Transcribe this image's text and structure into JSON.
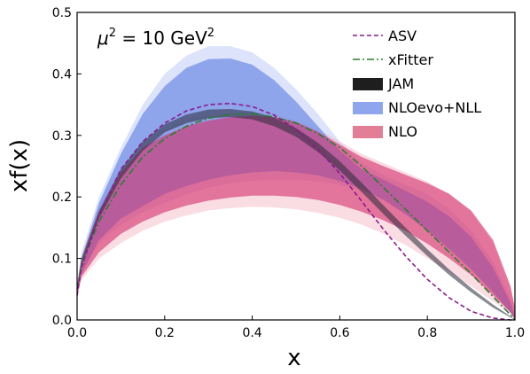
{
  "chart_data": {
    "type": "area",
    "xlabel": "x",
    "ylabel": "xf(x)",
    "annotation": {
      "mu_symbol": "μ",
      "mu_exponent": "2",
      "equals_value": " = 10 GeV",
      "unit_exponent": "2"
    },
    "xlim": [
      0.0,
      1.0
    ],
    "ylim": [
      0.0,
      0.5
    ],
    "x_ticks": [
      0.0,
      0.2,
      0.4,
      0.6,
      0.8,
      1.0
    ],
    "x_tick_labels": [
      "0.0",
      "0.2",
      "0.4",
      "0.6",
      "0.8",
      "1.0"
    ],
    "y_ticks": [
      0.0,
      0.1,
      0.2,
      0.3,
      0.4,
      0.5
    ],
    "y_tick_labels": [
      "0.0",
      "0.1",
      "0.2",
      "0.3",
      "0.4",
      "0.5"
    ],
    "grid": false,
    "legend_position": "top-right",
    "x": [
      0.0,
      0.01,
      0.05,
      0.1,
      0.15,
      0.2,
      0.25,
      0.3,
      0.35,
      0.4,
      0.45,
      0.5,
      0.55,
      0.6,
      0.65,
      0.7,
      0.75,
      0.8,
      0.85,
      0.9,
      0.95,
      0.99,
      1.0
    ],
    "series": [
      {
        "name": "NLOevo+NLL",
        "kind": "band",
        "color": "#9aaef0",
        "opacity": 0.35,
        "lower": [
          0.04,
          0.075,
          0.125,
          0.155,
          0.175,
          0.19,
          0.205,
          0.215,
          0.222,
          0.226,
          0.228,
          0.228,
          0.225,
          0.22,
          0.21,
          0.195,
          0.175,
          0.15,
          0.12,
          0.085,
          0.045,
          0.012,
          0.0
        ],
        "upper": [
          0.06,
          0.11,
          0.2,
          0.28,
          0.35,
          0.4,
          0.43,
          0.445,
          0.445,
          0.435,
          0.41,
          0.375,
          0.335,
          0.29,
          0.255,
          0.235,
          0.22,
          0.205,
          0.18,
          0.145,
          0.095,
          0.035,
          0.01
        ]
      },
      {
        "name": "NLO",
        "kind": "band",
        "color": "#f2a8b8",
        "opacity": 0.4,
        "lower": [
          0.035,
          0.065,
          0.1,
          0.125,
          0.145,
          0.16,
          0.17,
          0.178,
          0.182,
          0.184,
          0.183,
          0.18,
          0.174,
          0.166,
          0.155,
          0.14,
          0.122,
          0.1,
          0.078,
          0.055,
          0.03,
          0.01,
          0.0
        ],
        "upper": [
          0.06,
          0.105,
          0.19,
          0.25,
          0.29,
          0.31,
          0.325,
          0.333,
          0.337,
          0.338,
          0.335,
          0.325,
          0.31,
          0.29,
          0.27,
          0.255,
          0.24,
          0.225,
          0.205,
          0.175,
          0.125,
          0.05,
          0.02
        ]
      },
      {
        "name": "NLOevo+NLL",
        "kind": "band",
        "color": "#8099e8",
        "opacity": 0.85,
        "lower": [
          0.04,
          0.075,
          0.13,
          0.165,
          0.185,
          0.205,
          0.218,
          0.228,
          0.235,
          0.24,
          0.242,
          0.24,
          0.235,
          0.226,
          0.213,
          0.195,
          0.172,
          0.145,
          0.115,
          0.082,
          0.045,
          0.012,
          0.0
        ],
        "upper": [
          0.055,
          0.1,
          0.19,
          0.27,
          0.335,
          0.38,
          0.41,
          0.424,
          0.425,
          0.415,
          0.39,
          0.355,
          0.315,
          0.275,
          0.245,
          0.228,
          0.21,
          0.192,
          0.168,
          0.135,
          0.085,
          0.028,
          0.005
        ]
      },
      {
        "name": "NLO",
        "kind": "band",
        "color": "#d42f6b",
        "opacity": 0.6,
        "lower": [
          0.04,
          0.07,
          0.11,
          0.14,
          0.16,
          0.175,
          0.186,
          0.194,
          0.199,
          0.202,
          0.202,
          0.2,
          0.195,
          0.187,
          0.176,
          0.162,
          0.145,
          0.124,
          0.1,
          0.073,
          0.04,
          0.012,
          0.0
        ],
        "upper": [
          0.055,
          0.095,
          0.175,
          0.24,
          0.28,
          0.3,
          0.315,
          0.324,
          0.33,
          0.332,
          0.33,
          0.322,
          0.306,
          0.285,
          0.265,
          0.25,
          0.236,
          0.222,
          0.205,
          0.178,
          0.13,
          0.055,
          0.02
        ]
      },
      {
        "name": "JAM",
        "kind": "band",
        "color": "#2a2a38",
        "opacity": 0.55,
        "lower": [
          0.05,
          0.09,
          0.165,
          0.23,
          0.275,
          0.305,
          0.32,
          0.328,
          0.33,
          0.326,
          0.315,
          0.298,
          0.273,
          0.243,
          0.208,
          0.172,
          0.137,
          0.104,
          0.073,
          0.045,
          0.02,
          0.004,
          0.0
        ],
        "upper": [
          0.055,
          0.1,
          0.178,
          0.245,
          0.29,
          0.318,
          0.334,
          0.342,
          0.343,
          0.339,
          0.329,
          0.312,
          0.288,
          0.258,
          0.223,
          0.186,
          0.15,
          0.115,
          0.082,
          0.052,
          0.025,
          0.006,
          0.0
        ]
      },
      {
        "name": "xFitter",
        "kind": "line",
        "style": "dashdot",
        "color": "#2e7d2e",
        "values": [
          0.05,
          0.09,
          0.16,
          0.22,
          0.265,
          0.295,
          0.315,
          0.328,
          0.334,
          0.335,
          0.33,
          0.32,
          0.303,
          0.28,
          0.25,
          0.215,
          0.18,
          0.145,
          0.11,
          0.075,
          0.038,
          0.008,
          0.0
        ]
      },
      {
        "name": "ASV",
        "kind": "line",
        "style": "dashed",
        "color": "#8b1a8b",
        "values": [
          0.04,
          0.085,
          0.17,
          0.245,
          0.29,
          0.32,
          0.34,
          0.35,
          0.352,
          0.347,
          0.333,
          0.31,
          0.278,
          0.238,
          0.193,
          0.147,
          0.104,
          0.066,
          0.036,
          0.014,
          0.003,
          0.0,
          0.0
        ]
      }
    ],
    "legend": [
      {
        "label": "ASV",
        "marker": "dashed-line",
        "color": "#8b1a8b"
      },
      {
        "label": "xFitter",
        "marker": "dashdot-line",
        "color": "#2e7d2e"
      },
      {
        "label": "JAM",
        "marker": "patch",
        "color": "#1e1e1e"
      },
      {
        "label": "NLOevo+NLL",
        "marker": "patch",
        "color": "#8fa5ee"
      },
      {
        "label": "NLO",
        "marker": "patch",
        "color": "#e27f97"
      }
    ]
  }
}
